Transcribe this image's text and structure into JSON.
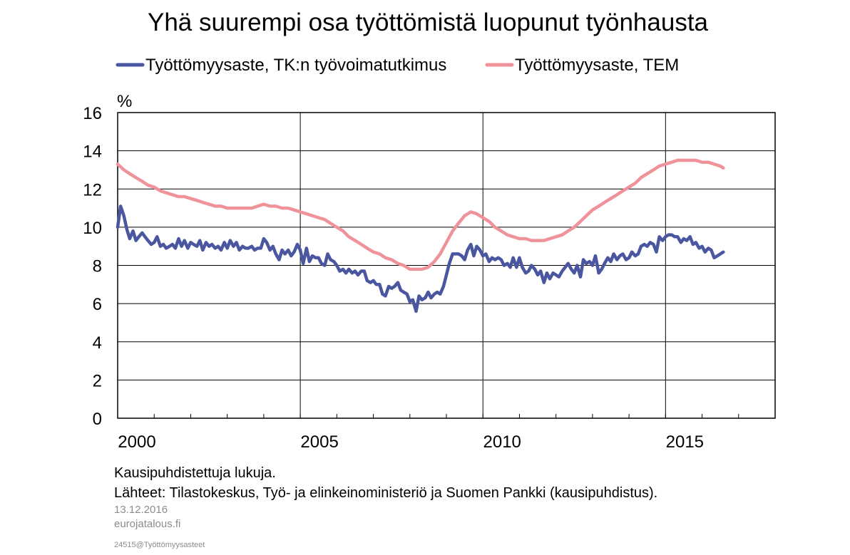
{
  "chart_data": {
    "type": "line",
    "title": "Yhä suurempi osa työttömistä luopunut työnhausta",
    "ylabel": "%",
    "xlabel": "",
    "ylim": [
      0,
      16
    ],
    "yticks": [
      0,
      2,
      4,
      6,
      8,
      10,
      12,
      14,
      16
    ],
    "xlim": [
      2000.0,
      2018.0
    ],
    "xticks": [
      2000,
      2005,
      2010,
      2015
    ],
    "x_tick_labels": [
      "2000",
      "2005",
      "2010",
      "2015"
    ],
    "grid": true,
    "legend_position": "top",
    "series": [
      {
        "name": "Työttömyysaste, TK:n työvoimatutkimus",
        "color": "#4a56a0",
        "points": [
          [
            2000.0,
            10.0
          ],
          [
            2000.08,
            11.1
          ],
          [
            2000.17,
            10.6
          ],
          [
            2000.25,
            9.9
          ],
          [
            2000.33,
            9.4
          ],
          [
            2000.42,
            9.8
          ],
          [
            2000.5,
            9.3
          ],
          [
            2000.58,
            9.5
          ],
          [
            2000.67,
            9.7
          ],
          [
            2000.75,
            9.5
          ],
          [
            2000.83,
            9.3
          ],
          [
            2000.92,
            9.1
          ],
          [
            2001.0,
            9.2
          ],
          [
            2001.08,
            9.5
          ],
          [
            2001.17,
            9.0
          ],
          [
            2001.25,
            9.1
          ],
          [
            2001.33,
            8.9
          ],
          [
            2001.42,
            9.0
          ],
          [
            2001.5,
            9.1
          ],
          [
            2001.58,
            8.9
          ],
          [
            2001.67,
            9.4
          ],
          [
            2001.75,
            9.0
          ],
          [
            2001.83,
            9.3
          ],
          [
            2001.92,
            8.9
          ],
          [
            2002.0,
            9.2
          ],
          [
            2002.08,
            9.1
          ],
          [
            2002.17,
            9.0
          ],
          [
            2002.25,
            9.3
          ],
          [
            2002.33,
            8.8
          ],
          [
            2002.42,
            9.2
          ],
          [
            2002.5,
            9.0
          ],
          [
            2002.58,
            9.1
          ],
          [
            2002.67,
            8.9
          ],
          [
            2002.75,
            9.0
          ],
          [
            2002.83,
            8.8
          ],
          [
            2002.92,
            9.2
          ],
          [
            2003.0,
            8.9
          ],
          [
            2003.08,
            9.3
          ],
          [
            2003.17,
            9.0
          ],
          [
            2003.25,
            9.2
          ],
          [
            2003.33,
            8.8
          ],
          [
            2003.42,
            9.0
          ],
          [
            2003.5,
            8.9
          ],
          [
            2003.58,
            8.9
          ],
          [
            2003.67,
            9.0
          ],
          [
            2003.75,
            8.8
          ],
          [
            2003.83,
            8.9
          ],
          [
            2003.92,
            8.9
          ],
          [
            2004.0,
            9.4
          ],
          [
            2004.08,
            9.2
          ],
          [
            2004.17,
            8.8
          ],
          [
            2004.25,
            9.0
          ],
          [
            2004.33,
            8.6
          ],
          [
            2004.42,
            8.3
          ],
          [
            2004.5,
            8.8
          ],
          [
            2004.58,
            8.6
          ],
          [
            2004.67,
            8.8
          ],
          [
            2004.75,
            8.5
          ],
          [
            2004.83,
            8.7
          ],
          [
            2004.92,
            9.1
          ],
          [
            2005.0,
            8.8
          ],
          [
            2005.08,
            8.1
          ],
          [
            2005.17,
            8.9
          ],
          [
            2005.25,
            8.2
          ],
          [
            2005.33,
            8.5
          ],
          [
            2005.42,
            8.4
          ],
          [
            2005.5,
            8.4
          ],
          [
            2005.58,
            8.1
          ],
          [
            2005.67,
            8.0
          ],
          [
            2005.75,
            8.6
          ],
          [
            2005.83,
            8.3
          ],
          [
            2005.92,
            8.2
          ],
          [
            2006.0,
            8.0
          ],
          [
            2006.08,
            7.7
          ],
          [
            2006.17,
            7.8
          ],
          [
            2006.25,
            7.6
          ],
          [
            2006.33,
            7.8
          ],
          [
            2006.42,
            7.6
          ],
          [
            2006.5,
            7.7
          ],
          [
            2006.58,
            7.5
          ],
          [
            2006.67,
            7.7
          ],
          [
            2006.75,
            7.7
          ],
          [
            2006.83,
            7.2
          ],
          [
            2006.92,
            7.1
          ],
          [
            2007.0,
            7.2
          ],
          [
            2007.08,
            7.0
          ],
          [
            2007.17,
            7.0
          ],
          [
            2007.25,
            6.5
          ],
          [
            2007.33,
            6.4
          ],
          [
            2007.42,
            6.9
          ],
          [
            2007.5,
            6.8
          ],
          [
            2007.58,
            6.9
          ],
          [
            2007.67,
            7.1
          ],
          [
            2007.75,
            6.7
          ],
          [
            2007.83,
            6.6
          ],
          [
            2007.92,
            6.5
          ],
          [
            2008.0,
            6.1
          ],
          [
            2008.08,
            6.2
          ],
          [
            2008.17,
            5.6
          ],
          [
            2008.25,
            6.4
          ],
          [
            2008.33,
            6.2
          ],
          [
            2008.42,
            6.3
          ],
          [
            2008.5,
            6.6
          ],
          [
            2008.58,
            6.3
          ],
          [
            2008.67,
            6.5
          ],
          [
            2008.75,
            6.6
          ],
          [
            2008.83,
            6.5
          ],
          [
            2008.92,
            6.9
          ],
          [
            2009.0,
            7.5
          ],
          [
            2009.08,
            8.1
          ],
          [
            2009.17,
            8.6
          ],
          [
            2009.25,
            8.6
          ],
          [
            2009.33,
            8.6
          ],
          [
            2009.42,
            8.5
          ],
          [
            2009.5,
            8.3
          ],
          [
            2009.58,
            8.8
          ],
          [
            2009.67,
            9.1
          ],
          [
            2009.75,
            8.5
          ],
          [
            2009.83,
            9.0
          ],
          [
            2009.92,
            8.8
          ],
          [
            2010.0,
            8.5
          ],
          [
            2010.08,
            8.6
          ],
          [
            2010.17,
            8.2
          ],
          [
            2010.25,
            8.4
          ],
          [
            2010.33,
            8.3
          ],
          [
            2010.42,
            8.4
          ],
          [
            2010.5,
            8.3
          ],
          [
            2010.58,
            8.0
          ],
          [
            2010.67,
            8.1
          ],
          [
            2010.75,
            7.9
          ],
          [
            2010.83,
            8.4
          ],
          [
            2010.92,
            7.9
          ],
          [
            2011.0,
            8.4
          ],
          [
            2011.08,
            7.9
          ],
          [
            2011.17,
            7.6
          ],
          [
            2011.25,
            7.7
          ],
          [
            2011.33,
            8.0
          ],
          [
            2011.42,
            7.8
          ],
          [
            2011.5,
            7.5
          ],
          [
            2011.58,
            7.7
          ],
          [
            2011.67,
            7.1
          ],
          [
            2011.75,
            7.6
          ],
          [
            2011.83,
            7.3
          ],
          [
            2011.92,
            7.6
          ],
          [
            2012.0,
            7.5
          ],
          [
            2012.08,
            7.4
          ],
          [
            2012.17,
            7.7
          ],
          [
            2012.25,
            7.9
          ],
          [
            2012.33,
            8.1
          ],
          [
            2012.42,
            7.8
          ],
          [
            2012.5,
            7.6
          ],
          [
            2012.58,
            8.0
          ],
          [
            2012.67,
            7.4
          ],
          [
            2012.75,
            8.3
          ],
          [
            2012.83,
            8.1
          ],
          [
            2012.92,
            8.2
          ],
          [
            2013.0,
            8.0
          ],
          [
            2013.08,
            8.5
          ],
          [
            2013.17,
            7.6
          ],
          [
            2013.25,
            7.8
          ],
          [
            2013.33,
            8.1
          ],
          [
            2013.42,
            8.4
          ],
          [
            2013.5,
            8.2
          ],
          [
            2013.58,
            8.6
          ],
          [
            2013.67,
            8.3
          ],
          [
            2013.75,
            8.5
          ],
          [
            2013.83,
            8.6
          ],
          [
            2013.92,
            8.3
          ],
          [
            2014.0,
            8.4
          ],
          [
            2014.08,
            8.7
          ],
          [
            2014.17,
            8.5
          ],
          [
            2014.25,
            8.6
          ],
          [
            2014.33,
            9.0
          ],
          [
            2014.42,
            9.1
          ],
          [
            2014.5,
            9.0
          ],
          [
            2014.58,
            9.2
          ],
          [
            2014.67,
            9.1
          ],
          [
            2014.75,
            8.7
          ],
          [
            2014.83,
            9.5
          ],
          [
            2014.92,
            9.3
          ],
          [
            2015.0,
            9.5
          ],
          [
            2015.08,
            9.6
          ],
          [
            2015.17,
            9.6
          ],
          [
            2015.25,
            9.5
          ],
          [
            2015.33,
            9.5
          ],
          [
            2015.42,
            9.2
          ],
          [
            2015.5,
            9.4
          ],
          [
            2015.58,
            9.3
          ],
          [
            2015.67,
            9.5
          ],
          [
            2015.75,
            9.1
          ],
          [
            2015.83,
            9.2
          ],
          [
            2015.92,
            8.9
          ],
          [
            2016.0,
            9.0
          ],
          [
            2016.08,
            8.7
          ],
          [
            2016.17,
            8.9
          ],
          [
            2016.25,
            8.8
          ],
          [
            2016.33,
            8.4
          ],
          [
            2016.42,
            8.5
          ],
          [
            2016.5,
            8.6
          ],
          [
            2016.58,
            8.7
          ]
        ]
      },
      {
        "name": "Työttömyysaste, TEM",
        "color": "#f0929a",
        "points": [
          [
            2000.0,
            13.3
          ],
          [
            2000.17,
            13.0
          ],
          [
            2000.33,
            12.8
          ],
          [
            2000.5,
            12.6
          ],
          [
            2000.67,
            12.4
          ],
          [
            2000.83,
            12.2
          ],
          [
            2001.0,
            12.1
          ],
          [
            2001.17,
            11.9
          ],
          [
            2001.33,
            11.8
          ],
          [
            2001.5,
            11.7
          ],
          [
            2001.67,
            11.6
          ],
          [
            2001.83,
            11.6
          ],
          [
            2002.0,
            11.5
          ],
          [
            2002.17,
            11.4
          ],
          [
            2002.33,
            11.3
          ],
          [
            2002.5,
            11.2
          ],
          [
            2002.67,
            11.1
          ],
          [
            2002.83,
            11.1
          ],
          [
            2003.0,
            11.0
          ],
          [
            2003.17,
            11.0
          ],
          [
            2003.33,
            11.0
          ],
          [
            2003.5,
            11.0
          ],
          [
            2003.67,
            11.0
          ],
          [
            2003.83,
            11.1
          ],
          [
            2004.0,
            11.2
          ],
          [
            2004.17,
            11.1
          ],
          [
            2004.33,
            11.1
          ],
          [
            2004.5,
            11.0
          ],
          [
            2004.67,
            11.0
          ],
          [
            2004.83,
            10.9
          ],
          [
            2005.0,
            10.8
          ],
          [
            2005.17,
            10.7
          ],
          [
            2005.33,
            10.6
          ],
          [
            2005.5,
            10.5
          ],
          [
            2005.67,
            10.4
          ],
          [
            2005.83,
            10.2
          ],
          [
            2006.0,
            10.0
          ],
          [
            2006.17,
            9.8
          ],
          [
            2006.33,
            9.5
          ],
          [
            2006.5,
            9.3
          ],
          [
            2006.67,
            9.1
          ],
          [
            2006.83,
            8.9
          ],
          [
            2007.0,
            8.7
          ],
          [
            2007.17,
            8.6
          ],
          [
            2007.33,
            8.4
          ],
          [
            2007.5,
            8.3
          ],
          [
            2007.67,
            8.1
          ],
          [
            2007.83,
            8.0
          ],
          [
            2008.0,
            7.8
          ],
          [
            2008.17,
            7.8
          ],
          [
            2008.33,
            7.8
          ],
          [
            2008.5,
            7.9
          ],
          [
            2008.67,
            8.2
          ],
          [
            2008.83,
            8.6
          ],
          [
            2009.0,
            9.2
          ],
          [
            2009.17,
            9.8
          ],
          [
            2009.33,
            10.2
          ],
          [
            2009.5,
            10.6
          ],
          [
            2009.67,
            10.8
          ],
          [
            2009.83,
            10.7
          ],
          [
            2010.0,
            10.5
          ],
          [
            2010.17,
            10.3
          ],
          [
            2010.33,
            10.0
          ],
          [
            2010.5,
            9.8
          ],
          [
            2010.67,
            9.6
          ],
          [
            2010.83,
            9.5
          ],
          [
            2011.0,
            9.4
          ],
          [
            2011.17,
            9.4
          ],
          [
            2011.33,
            9.3
          ],
          [
            2011.5,
            9.3
          ],
          [
            2011.67,
            9.3
          ],
          [
            2011.83,
            9.4
          ],
          [
            2012.0,
            9.5
          ],
          [
            2012.17,
            9.6
          ],
          [
            2012.33,
            9.8
          ],
          [
            2012.5,
            10.0
          ],
          [
            2012.67,
            10.3
          ],
          [
            2012.83,
            10.6
          ],
          [
            2013.0,
            10.9
          ],
          [
            2013.17,
            11.1
          ],
          [
            2013.33,
            11.3
          ],
          [
            2013.5,
            11.5
          ],
          [
            2013.67,
            11.7
          ],
          [
            2013.83,
            11.9
          ],
          [
            2014.0,
            12.1
          ],
          [
            2014.17,
            12.3
          ],
          [
            2014.33,
            12.6
          ],
          [
            2014.5,
            12.8
          ],
          [
            2014.67,
            13.0
          ],
          [
            2014.83,
            13.2
          ],
          [
            2015.0,
            13.3
          ],
          [
            2015.17,
            13.4
          ],
          [
            2015.33,
            13.5
          ],
          [
            2015.5,
            13.5
          ],
          [
            2015.67,
            13.5
          ],
          [
            2015.83,
            13.5
          ],
          [
            2016.0,
            13.4
          ],
          [
            2016.17,
            13.4
          ],
          [
            2016.33,
            13.3
          ],
          [
            2016.5,
            13.2
          ],
          [
            2016.58,
            13.1
          ]
        ]
      }
    ]
  },
  "notes": {
    "line1": "Kausipuhdistettuja lukuja.",
    "line2": "Lähteet: Tilastokeskus, Työ- ja elinkeinoministeriö ja Suomen Pankki (kausipuhdistus).",
    "date": "13.12.2016",
    "site": "eurojatalous.fi",
    "code": "24515@Työttömyysasteet"
  }
}
